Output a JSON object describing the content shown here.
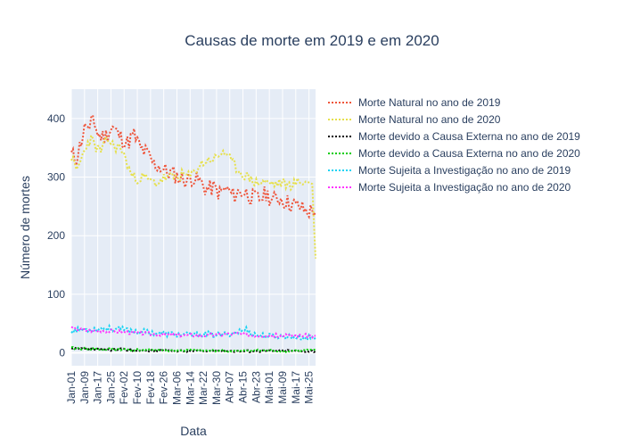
{
  "chart_data": {
    "type": "line",
    "title": "Causas de morte em 2019 e em 2020",
    "xlabel": "Data",
    "ylabel": "Número de mortes",
    "x_tick_labels": [
      "Jan-01",
      "Jan-09",
      "Jan-17",
      "Jan-25",
      "Fev-02",
      "Fev-10",
      "Fev-18",
      "Fev-26",
      "Mar-06",
      "Mar-14",
      "Mar-22",
      "Mar-30",
      "Abr-07",
      "Abr-15",
      "Abr-23",
      "Mai-01",
      "Mai-09",
      "Mai-17",
      "Mai-25"
    ],
    "y_ticks": [
      0,
      100,
      200,
      300,
      400
    ],
    "ylim": [
      -22,
      450
    ],
    "xlim_days": [
      0,
      148
    ],
    "grid": true,
    "legend_position": "right",
    "background": "#e5ecf6",
    "series": [
      {
        "name": "Morte Natural no ano de 2019",
        "color": "#EF553B",
        "anchors": [
          [
            0,
            338
          ],
          [
            3,
            332
          ],
          [
            6,
            362
          ],
          [
            9,
            392
          ],
          [
            11,
            372
          ],
          [
            13,
            405
          ],
          [
            16,
            372
          ],
          [
            20,
            368
          ],
          [
            25,
            385
          ],
          [
            30,
            368
          ],
          [
            34,
            358
          ],
          [
            38,
            372
          ],
          [
            42,
            348
          ],
          [
            46,
            340
          ],
          [
            50,
            322
          ],
          [
            54,
            318
          ],
          [
            58,
            308
          ],
          [
            62,
            305
          ],
          [
            66,
            298
          ],
          [
            70,
            295
          ],
          [
            74,
            300
          ],
          [
            78,
            292
          ],
          [
            82,
            278
          ],
          [
            86,
            282
          ],
          [
            90,
            272
          ],
          [
            94,
            280
          ],
          [
            98,
            268
          ],
          [
            102,
            275
          ],
          [
            106,
            273
          ],
          [
            110,
            265
          ],
          [
            114,
            262
          ],
          [
            118,
            272
          ],
          [
            122,
            260
          ],
          [
            126,
            265
          ],
          [
            130,
            258
          ],
          [
            134,
            253
          ],
          [
            138,
            250
          ],
          [
            142,
            242
          ],
          [
            146,
            242
          ],
          [
            148,
            245
          ]
        ],
        "noise": 30,
        "seed": 11
      },
      {
        "name": "Morte Natural no ano de 2020",
        "color": "#e6e04a",
        "anchors": [
          [
            0,
            335
          ],
          [
            3,
            310
          ],
          [
            6,
            330
          ],
          [
            9,
            355
          ],
          [
            12,
            365
          ],
          [
            15,
            350
          ],
          [
            18,
            345
          ],
          [
            22,
            365
          ],
          [
            26,
            352
          ],
          [
            30,
            350
          ],
          [
            34,
            322
          ],
          [
            37,
            300
          ],
          [
            40,
            298
          ],
          [
            44,
            300
          ],
          [
            48,
            292
          ],
          [
            52,
            290
          ],
          [
            56,
            298
          ],
          [
            60,
            300
          ],
          [
            64,
            300
          ],
          [
            68,
            305
          ],
          [
            72,
            300
          ],
          [
            76,
            315
          ],
          [
            80,
            325
          ],
          [
            84,
            330
          ],
          [
            88,
            332
          ],
          [
            92,
            345
          ],
          [
            96,
            330
          ],
          [
            100,
            315
          ],
          [
            104,
            305
          ],
          [
            108,
            298
          ],
          [
            112,
            290
          ],
          [
            116,
            292
          ],
          [
            120,
            290
          ],
          [
            124,
            288
          ],
          [
            128,
            290
          ],
          [
            132,
            286
          ],
          [
            136,
            290
          ],
          [
            140,
            292
          ],
          [
            144,
            290
          ],
          [
            146,
            292
          ],
          [
            147,
            220
          ],
          [
            148,
            165
          ]
        ],
        "noise": 18,
        "seed": 23
      },
      {
        "name": "Morte devido a Causa Externa no ano de 2019",
        "color": "#000000",
        "anchors": [
          [
            0,
            7
          ],
          [
            10,
            6
          ],
          [
            20,
            5
          ],
          [
            30,
            6
          ],
          [
            40,
            4
          ],
          [
            50,
            4
          ],
          [
            60,
            4
          ],
          [
            70,
            3
          ],
          [
            80,
            3
          ],
          [
            90,
            4
          ],
          [
            100,
            3
          ],
          [
            110,
            3
          ],
          [
            120,
            3
          ],
          [
            130,
            4
          ],
          [
            140,
            3
          ],
          [
            148,
            3
          ]
        ],
        "noise": 4,
        "seed": 37
      },
      {
        "name": "Morte devido a Causa Externa no ano de 2020",
        "color": "#00cc00",
        "anchors": [
          [
            0,
            8
          ],
          [
            10,
            7
          ],
          [
            20,
            6
          ],
          [
            30,
            6
          ],
          [
            40,
            5
          ],
          [
            50,
            5
          ],
          [
            60,
            4
          ],
          [
            70,
            4
          ],
          [
            80,
            4
          ],
          [
            90,
            4
          ],
          [
            100,
            3
          ],
          [
            110,
            4
          ],
          [
            120,
            4
          ],
          [
            130,
            3
          ],
          [
            140,
            4
          ],
          [
            148,
            4
          ]
        ],
        "noise": 4,
        "seed": 41
      },
      {
        "name": "Morte Sujeita a Investigação no ano de 2019",
        "color": "#19d3f3",
        "anchors": [
          [
            0,
            38
          ],
          [
            10,
            40
          ],
          [
            20,
            42
          ],
          [
            30,
            40
          ],
          [
            40,
            37
          ],
          [
            50,
            34
          ],
          [
            60,
            32
          ],
          [
            70,
            30
          ],
          [
            80,
            32
          ],
          [
            90,
            30
          ],
          [
            100,
            35
          ],
          [
            106,
            40
          ],
          [
            110,
            32
          ],
          [
            120,
            28
          ],
          [
            130,
            28
          ],
          [
            140,
            26
          ],
          [
            148,
            25
          ]
        ],
        "noise": 10,
        "seed": 53
      },
      {
        "name": "Morte Sujeita a Investigação no ano de 2020",
        "color": "#FF33FF",
        "anchors": [
          [
            0,
            42
          ],
          [
            10,
            38
          ],
          [
            20,
            38
          ],
          [
            30,
            36
          ],
          [
            40,
            34
          ],
          [
            50,
            32
          ],
          [
            60,
            31
          ],
          [
            70,
            30
          ],
          [
            80,
            30
          ],
          [
            90,
            31
          ],
          [
            100,
            33
          ],
          [
            110,
            30
          ],
          [
            120,
            30
          ],
          [
            130,
            29
          ],
          [
            140,
            30
          ],
          [
            148,
            28
          ]
        ],
        "noise": 6,
        "seed": 67
      }
    ]
  }
}
